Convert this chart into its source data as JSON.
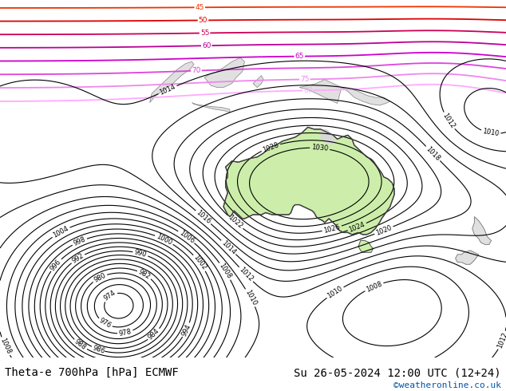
{
  "title_left": "Theta-e 700hPa [hPa] ECMWF",
  "title_right": "Su 26-05-2024 12:00 UTC (12+24)",
  "copyright": "©weatheronline.co.uk",
  "bg_color": "#c8c8c8",
  "map_bg": "#d8d8d8",
  "land_color": "#e0e0e0",
  "australia_fill": "#cceeaa",
  "footer_bg": "#ffffff",
  "figsize": [
    6.34,
    4.9
  ],
  "dpi": 100,
  "title_fontsize": 10,
  "copyright_fontsize": 8,
  "copyright_color": "#0055aa",
  "lon_min": 60,
  "lon_max": 180,
  "lat_min": -70,
  "lat_max": 20
}
